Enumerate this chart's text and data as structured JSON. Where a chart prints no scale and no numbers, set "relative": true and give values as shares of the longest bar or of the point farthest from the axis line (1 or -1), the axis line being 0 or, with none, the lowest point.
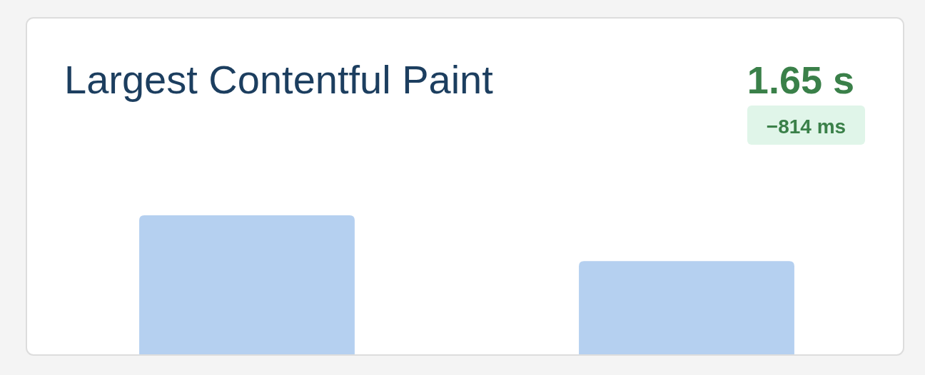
{
  "chart_data": {
    "type": "bar",
    "title": "Largest Contentful Paint",
    "categories": [
      null,
      null
    ],
    "values": [
      1,
      0.67
    ],
    "color": "#b5d0f0",
    "relative": true,
    "annotations": [
      "1.65 s",
      "−814 ms"
    ]
  }
}
